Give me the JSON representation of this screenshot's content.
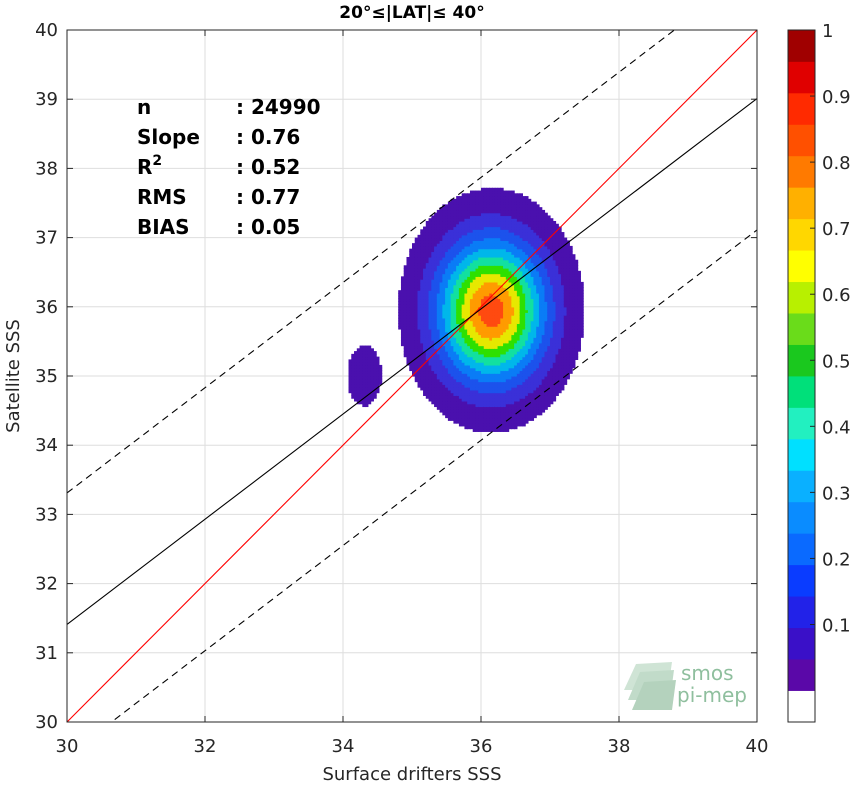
{
  "chart_data": {
    "type": "scatter",
    "title": "20°≤|LAT|≤ 40°",
    "xlabel": "Surface drifters SSS",
    "ylabel": "Satellite SSS",
    "xlim": [
      30,
      40
    ],
    "ylim": [
      30,
      40
    ],
    "xticks": [
      30,
      32,
      34,
      36,
      38,
      40
    ],
    "yticks": [
      30,
      31,
      32,
      33,
      34,
      35,
      36,
      37,
      38,
      39,
      40
    ],
    "grid": true,
    "stats": [
      {
        "label": "n",
        "value": ": 24990"
      },
      {
        "label": "Slope",
        "value": ": 0.76"
      },
      {
        "label": "R",
        "sup": "2",
        "value": ": 0.52"
      },
      {
        "label": "RMS",
        "value": ": 0.77"
      },
      {
        "label": "BIAS",
        "value": ": 0.05"
      }
    ],
    "lines": [
      {
        "kind": "one-to-one",
        "slope": 1,
        "intercept": 0,
        "color": "#ff0000",
        "dash": false
      },
      {
        "kind": "regression",
        "slope": 0.76,
        "intercept": 8.61,
        "color": "#000000",
        "dash": false
      },
      {
        "kind": "upper-bound",
        "slope": 0.76,
        "intercept": 10.51,
        "color": "#000000",
        "dash": true
      },
      {
        "kind": "lower-bound",
        "slope": 0.76,
        "intercept": 6.71,
        "color": "#000000",
        "dash": true
      }
    ],
    "density_levels": [
      0.05,
      0.15,
      0.25,
      0.35,
      0.45,
      0.55,
      0.65,
      0.75,
      0.85,
      0.95
    ],
    "density_colors": [
      "#4a10ae",
      "#3a30d8",
      "#1c52ec",
      "#0a7cf6",
      "#00b7ea",
      "#12e0a0",
      "#2ee000",
      "#e7e800",
      "#ff9b00",
      "#ff4a10"
    ],
    "blobs": [
      {
        "cx": 36.15,
        "cy": 35.95,
        "sx": 0.55,
        "sy": 0.72,
        "amp": 1.0
      },
      {
        "cx": 34.3,
        "cy": 35.0,
        "sx": 0.18,
        "sy": 0.32,
        "amp": 0.12
      }
    ],
    "colorbar": {
      "ticks": [
        0.1,
        0.2,
        0.3,
        0.4,
        0.5,
        0.6,
        0.7,
        0.8,
        0.9,
        1
      ],
      "tick_labels": [
        "0.1",
        "0.2",
        "0.3",
        "0.4",
        "0.5",
        "0.6",
        "0.7",
        "0.8",
        "0.9",
        "1"
      ],
      "colors": [
        "#ffffff",
        "#5a08a8",
        "#3a10c8",
        "#2222e8",
        "#0a3cff",
        "#0a6aff",
        "#0a8cff",
        "#0ab0ff",
        "#00e0ff",
        "#22f0c0",
        "#00e07a",
        "#1ac81e",
        "#6adc1a",
        "#b8f000",
        "#ffff00",
        "#ffd700",
        "#ffb000",
        "#ff7a00",
        "#ff5000",
        "#ff2a00",
        "#e00000",
        "#a00000"
      ]
    }
  },
  "watermark": {
    "line1": "smos",
    "line2": "pi-mep"
  }
}
